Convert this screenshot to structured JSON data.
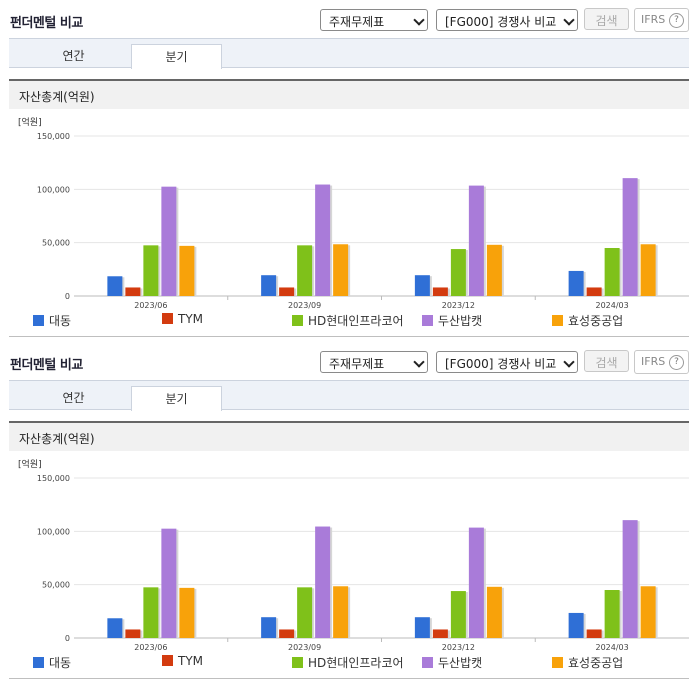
{
  "panels": [
    {
      "title": "펀더멘털 비교",
      "statement_select": "주재무제표",
      "compare_select": "[FG000] 경쟁사 비교",
      "search_label": "검색",
      "ifrs_label": "IFRS",
      "help_glyph": "?",
      "tabs": [
        {
          "label": "연간"
        },
        {
          "label": "분기"
        }
      ],
      "active_tab": "분기",
      "section_title": "자산총계(억원)"
    },
    {
      "title": "펀더멘털 비교",
      "statement_select": "주재무제표",
      "compare_select": "[FG000] 경쟁사 비교",
      "search_label": "검색",
      "ifrs_label": "IFRS",
      "help_glyph": "?",
      "tabs": [
        {
          "label": "연간"
        },
        {
          "label": "분기"
        }
      ],
      "active_tab": "분기",
      "section_title": "자산총계(억원)"
    }
  ],
  "chart_data": [
    {
      "type": "bar",
      "title": "자산총계(억원)",
      "unit_label": "[억원]",
      "categories": [
        "2023/06",
        "2023/09",
        "2023/12",
        "2024/03"
      ],
      "y_ticks": [
        "150,000",
        "100,000",
        "50,000",
        "0"
      ],
      "ylim": [
        0,
        150000
      ],
      "legend": "bottom",
      "series": [
        {
          "name": "대동",
          "color": "#2f6fd6",
          "values": [
            18500,
            19500,
            19500,
            23500
          ]
        },
        {
          "name": "TYM",
          "color": "#d33b0f",
          "values": [
            8000,
            8000,
            8000,
            8000
          ]
        },
        {
          "name": "HD현대인프라코어",
          "color": "#7fc11a",
          "values": [
            47500,
            47500,
            44000,
            45000
          ]
        },
        {
          "name": "두산밥캣",
          "color": "#a97bd9",
          "values": [
            102500,
            104500,
            103500,
            110500
          ]
        },
        {
          "name": "효성중공업",
          "color": "#f8a20a",
          "values": [
            47000,
            48500,
            48000,
            48500
          ]
        }
      ]
    },
    {
      "type": "bar",
      "title": "자산총계(억원)",
      "unit_label": "[억원]",
      "categories": [
        "2023/06",
        "2023/09",
        "2023/12",
        "2024/03"
      ],
      "y_ticks": [
        "150,000",
        "100,000",
        "50,000",
        "0"
      ],
      "ylim": [
        0,
        150000
      ],
      "legend": "bottom",
      "series": [
        {
          "name": "대동",
          "color": "#2f6fd6",
          "values": [
            18500,
            19500,
            19500,
            23500
          ]
        },
        {
          "name": "TYM",
          "color": "#d33b0f",
          "values": [
            8000,
            8000,
            8000,
            8000
          ]
        },
        {
          "name": "HD현대인프라코어",
          "color": "#7fc11a",
          "values": [
            47500,
            47500,
            44000,
            45000
          ]
        },
        {
          "name": "두산밥캣",
          "color": "#a97bd9",
          "values": [
            102500,
            104500,
            103500,
            110500
          ]
        },
        {
          "name": "효성중공업",
          "color": "#f8a20a",
          "values": [
            47000,
            48500,
            48000,
            48500
          ]
        }
      ]
    }
  ]
}
